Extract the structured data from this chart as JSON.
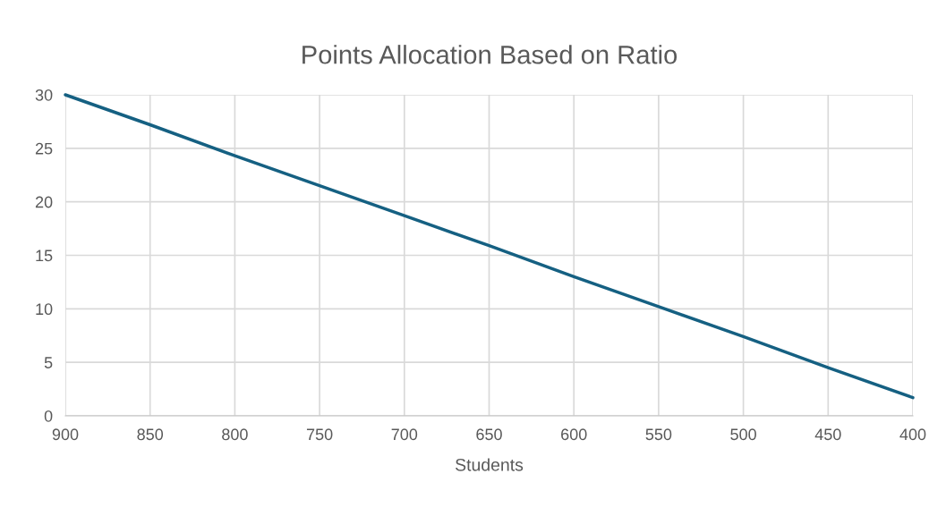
{
  "chart_data": {
    "type": "line",
    "title": "Points Allocation Based on Ratio",
    "xlabel": "Students",
    "x": [
      900,
      850,
      800,
      750,
      700,
      650,
      600,
      550,
      500,
      450,
      400
    ],
    "series": [
      {
        "color": "#156082",
        "values": [
          30,
          27.2,
          24.3,
          21.5,
          18.7,
          15.9,
          13.0,
          10.2,
          7.4,
          4.5,
          1.7
        ]
      }
    ],
    "xlim": [
      900,
      400
    ],
    "xticks": [
      900,
      850,
      800,
      750,
      700,
      650,
      600,
      550,
      500,
      450,
      400
    ],
    "ylim": [
      0,
      30
    ],
    "yticks": [
      0,
      5,
      10,
      15,
      20,
      25,
      30
    ],
    "grid": true,
    "marker": "none",
    "line_style": "solid"
  }
}
